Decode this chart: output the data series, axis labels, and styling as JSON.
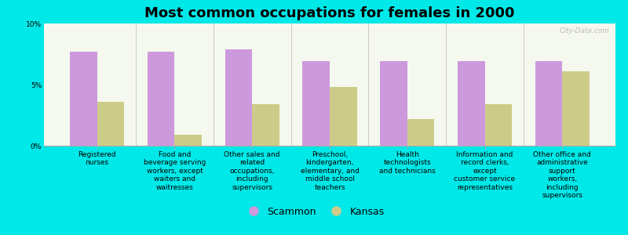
{
  "title": "Most common occupations for females in 2000",
  "background_color": "#00e8e8",
  "plot_bg_color": "#f5f8ee",
  "categories": [
    "Registered\nnurses",
    "Food and\nbeverage serving\nworkers, except\nwaiters and\nwaitresses",
    "Other sales and\nrelated\noccupations,\nincluding\nsupervisors",
    "Preschool,\nkindergarten,\nelementary, and\nmiddle school\nteachers",
    "Health\ntechnologists\nand technicians",
    "Information and\nrecord clerks,\nexcept\ncustomer service\nrepresentatives",
    "Other office and\nadministrative\nsupport\nworkers,\nincluding\nsupervisors"
  ],
  "scammon_values": [
    7.7,
    7.7,
    7.9,
    6.9,
    6.9,
    6.9,
    6.9
  ],
  "kansas_values": [
    3.6,
    0.9,
    3.4,
    4.8,
    2.2,
    3.4,
    6.1
  ],
  "scammon_color": "#cc99dd",
  "kansas_color": "#cccc88",
  "ylim": [
    0,
    10
  ],
  "yticks": [
    0,
    5,
    10
  ],
  "ytick_labels": [
    "0%",
    "5%",
    "10%"
  ],
  "legend_labels": [
    "Scammon",
    "Kansas"
  ],
  "bar_width": 0.35,
  "title_fontsize": 13,
  "tick_fontsize": 6.5,
  "legend_fontsize": 9,
  "watermark": "City-Data.com"
}
